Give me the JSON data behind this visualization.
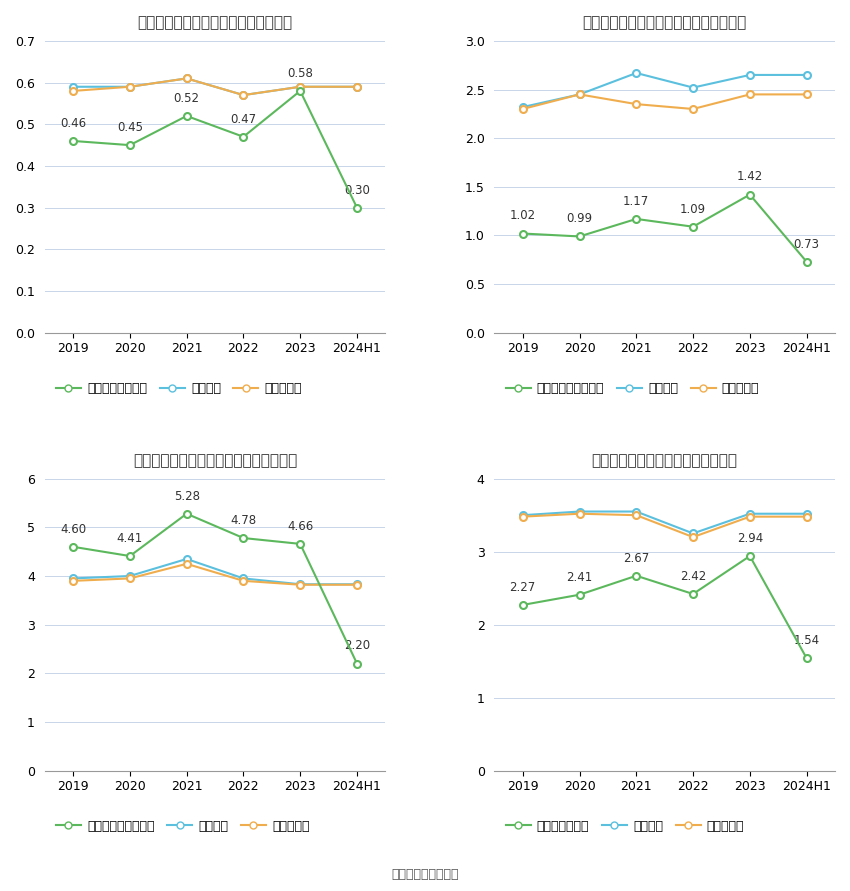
{
  "charts": [
    {
      "title": "襄阳轴承历年总资产周转率情况（次）",
      "years": [
        "2019",
        "2020",
        "2021",
        "2022",
        "2023",
        "2024H1"
      ],
      "company": [
        0.46,
        0.45,
        0.52,
        0.47,
        0.58,
        0.3
      ],
      "company_labels": [
        "0.46",
        "0.45",
        "0.52",
        "0.47",
        "0.58",
        "0.30"
      ],
      "industry_avg": [
        0.59,
        0.59,
        0.61,
        0.57,
        0.59,
        0.59
      ],
      "industry_med": [
        0.58,
        0.59,
        0.61,
        0.57,
        0.59,
        0.59
      ],
      "ylim": [
        0,
        0.7
      ],
      "yticks": [
        0,
        0.1,
        0.2,
        0.3,
        0.4,
        0.5,
        0.6,
        0.7
      ],
      "legend_company": "公司总资产周转率"
    },
    {
      "title": "襄阳轴承历年固定资产周转率情况（次）",
      "years": [
        "2019",
        "2020",
        "2021",
        "2022",
        "2023",
        "2024H1"
      ],
      "company": [
        1.02,
        0.99,
        1.17,
        1.09,
        1.42,
        0.73
      ],
      "company_labels": [
        "1.02",
        "0.99",
        "1.17",
        "1.09",
        "1.42",
        "0.73"
      ],
      "industry_avg": [
        2.32,
        2.45,
        2.67,
        2.52,
        2.65,
        2.65
      ],
      "industry_med": [
        2.3,
        2.45,
        2.35,
        2.3,
        2.45,
        2.45
      ],
      "ylim": [
        0,
        3
      ],
      "yticks": [
        0,
        0.5,
        1.0,
        1.5,
        2.0,
        2.5,
        3.0
      ],
      "legend_company": "公司固定资产周转率"
    },
    {
      "title": "襄阳轴承历年应收账款周转率情况（次）",
      "years": [
        "2019",
        "2020",
        "2021",
        "2022",
        "2023",
        "2024H1"
      ],
      "company": [
        4.6,
        4.41,
        5.28,
        4.78,
        4.66,
        2.2
      ],
      "company_labels": [
        "4.60",
        "4.41",
        "5.28",
        "4.78",
        "4.66",
        "2.20"
      ],
      "industry_avg": [
        3.95,
        4.0,
        4.35,
        3.95,
        3.83,
        3.83
      ],
      "industry_med": [
        3.9,
        3.95,
        4.25,
        3.9,
        3.82,
        3.82
      ],
      "ylim": [
        0,
        6
      ],
      "yticks": [
        0,
        1,
        2,
        3,
        4,
        5,
        6
      ],
      "legend_company": "公司应收账款周转率"
    },
    {
      "title": "襄阳轴承历年存货周转率情况（次）",
      "years": [
        "2019",
        "2020",
        "2021",
        "2022",
        "2023",
        "2024H1"
      ],
      "company": [
        2.27,
        2.41,
        2.67,
        2.42,
        2.94,
        1.54
      ],
      "company_labels": [
        "2.27",
        "2.41",
        "2.67",
        "2.42",
        "2.94",
        "1.54"
      ],
      "industry_avg": [
        3.5,
        3.55,
        3.55,
        3.25,
        3.52,
        3.52
      ],
      "industry_med": [
        3.48,
        3.52,
        3.5,
        3.2,
        3.48,
        3.48
      ],
      "ylim": [
        0,
        4
      ],
      "yticks": [
        0,
        1,
        2,
        3,
        4
      ],
      "legend_company": "公司存货周转率"
    }
  ],
  "colors": {
    "company": "#5cb85c",
    "industry_avg": "#5bc0de",
    "industry_med": "#f0ad4e"
  },
  "source_text": "数据来源：恒生聚源",
  "legend_avg": "行业均值",
  "legend_med": "行业中位数"
}
